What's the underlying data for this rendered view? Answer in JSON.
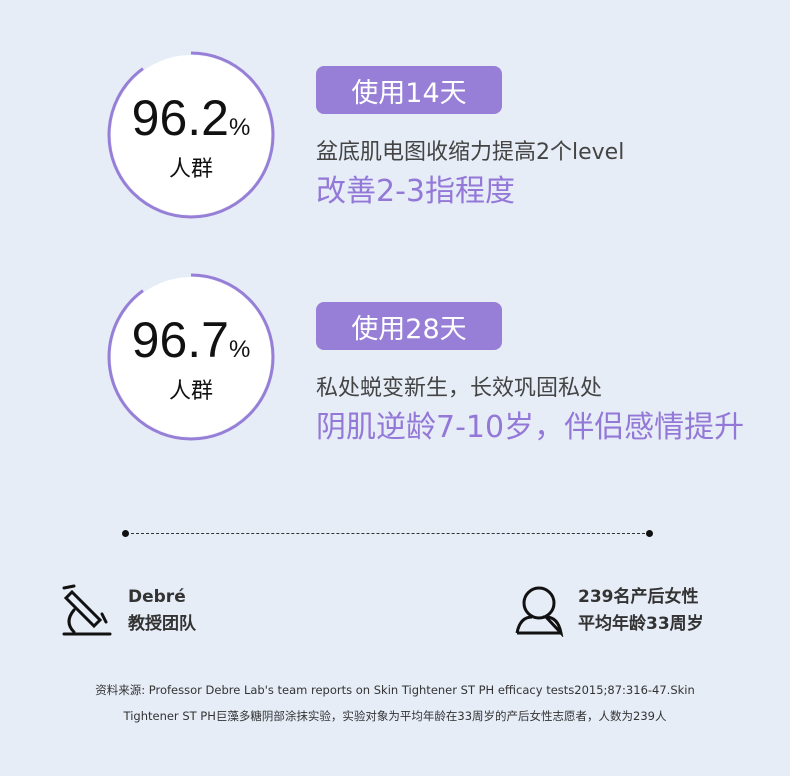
{
  "stats": [
    {
      "value": "96.2",
      "unit": "%",
      "group": "人群",
      "ring_fraction": 0.9,
      "badge": "使用14天",
      "desc": "盆底肌电图收缩力提高2个level",
      "highlight": "改善2-3指程度"
    },
    {
      "value": "96.7",
      "unit": "%",
      "group": "人群",
      "ring_fraction": 0.9,
      "badge": "使用28天",
      "desc": "私处蜕变新生，长效巩固私处",
      "highlight": "阴肌逆龄7-10岁，伴侣感情提升"
    }
  ],
  "info": {
    "team": {
      "icon": "microscope-icon",
      "line1": "Debré",
      "line2": "教授团队"
    },
    "subjects": {
      "icon": "person-icon",
      "line1": "239名产后女性",
      "line2": "平均年龄33周岁"
    }
  },
  "source": {
    "line1": "资料来源: Professor Debre Lab's team reports on Skin Tightener ST PH efficacy tests2015;87:316-47.Skin",
    "line2": "Tightener ST PH巨藻多糖阴部涂抹实验，实验对象为平均年龄在33周岁的产后女性志愿者，人数为239人"
  },
  "colors": {
    "accent": "#977fd7",
    "highlight": "#9478d8",
    "background": "#e6edf7"
  }
}
